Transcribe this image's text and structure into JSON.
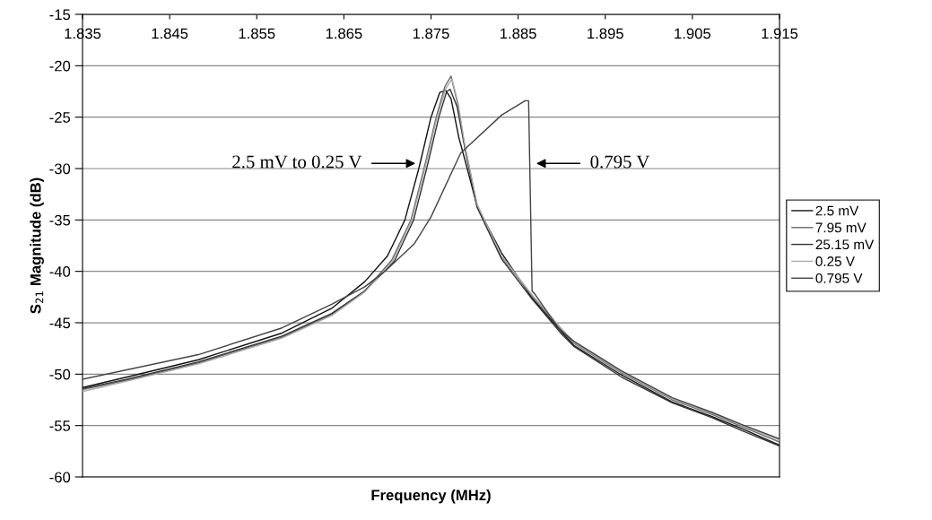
{
  "chart_data": {
    "type": "line",
    "xlabel": "Frequency (MHz)",
    "ylabel": "S$_{21}$ Magnitude (dB)",
    "xlim": [
      1.835,
      1.915
    ],
    "xticks": [
      1.835,
      1.845,
      1.855,
      1.865,
      1.875,
      1.885,
      1.895,
      1.905,
      1.915
    ],
    "ylim": [
      -60,
      -15
    ],
    "yticks": [
      -15,
      -20,
      -25,
      -30,
      -35,
      -40,
      -45,
      -50,
      -55,
      -60
    ],
    "grid": "y",
    "legend": "right",
    "marker": "none",
    "line_style": "solid",
    "series": [
      {
        "name": "2.5 mV",
        "color": "#111111",
        "x": [
          1.835,
          1.84,
          1.8483,
          1.8579,
          1.8636,
          1.8674,
          1.87,
          1.872,
          1.8736,
          1.875,
          1.876,
          1.8767,
          1.8773,
          1.8782,
          1.879,
          1.8803,
          1.8831,
          1.8866,
          1.8901,
          1.8914,
          1.8969,
          1.9027,
          1.9072,
          1.9107,
          1.915
        ],
        "values": [
          -51.3,
          -50.3,
          -48.6,
          -46.0,
          -43.6,
          -41.0,
          -38.5,
          -35.0,
          -30.0,
          -25.0,
          -22.6,
          -22.4,
          -23.2,
          -27.0,
          -29.5,
          -33.7,
          -38.2,
          -42.6,
          -46.0,
          -47.2,
          -50.1,
          -52.7,
          -54.1,
          -55.3,
          -56.9
        ]
      },
      {
        "name": "7.95 mV",
        "color": "#666666",
        "x": [
          1.835,
          1.84,
          1.8483,
          1.8579,
          1.8636,
          1.8674,
          1.8705,
          1.8727,
          1.8742,
          1.8756,
          1.8766,
          1.8773,
          1.878,
          1.8788,
          1.8803,
          1.8831,
          1.8866,
          1.8901,
          1.8914,
          1.8969,
          1.9027,
          1.9072,
          1.9107,
          1.915
        ],
        "values": [
          -51.5,
          -50.6,
          -48.9,
          -46.4,
          -44.2,
          -41.9,
          -38.9,
          -35.0,
          -30.0,
          -25.0,
          -22.0,
          -21.0,
          -23.5,
          -27.5,
          -33.6,
          -38.6,
          -42.4,
          -45.8,
          -47.0,
          -49.9,
          -52.5,
          -53.9,
          -55.1,
          -56.6
        ]
      },
      {
        "name": "25.15 mV",
        "color": "#333333",
        "x": [
          1.835,
          1.84,
          1.8483,
          1.8579,
          1.8636,
          1.8674,
          1.8708,
          1.873,
          1.8745,
          1.8759,
          1.8768,
          1.8772,
          1.878,
          1.879,
          1.8803,
          1.8831,
          1.8866,
          1.8901,
          1.8914,
          1.8969,
          1.9027,
          1.9072,
          1.9107,
          1.915
        ],
        "values": [
          -51.4,
          -50.5,
          -48.8,
          -46.3,
          -44.1,
          -41.9,
          -39.0,
          -35.0,
          -30.0,
          -25.0,
          -22.5,
          -22.3,
          -24.0,
          -28.5,
          -33.8,
          -38.8,
          -42.7,
          -46.2,
          -47.3,
          -50.3,
          -52.8,
          -54.2,
          -55.5,
          -57.0
        ]
      },
      {
        "name": "0.25 V",
        "color": "#aaaaaa",
        "x": [
          1.835,
          1.84,
          1.8483,
          1.8579,
          1.8636,
          1.8674,
          1.8706,
          1.8728,
          1.8743,
          1.8757,
          1.8767,
          1.8774,
          1.8781,
          1.8789,
          1.8803,
          1.8831,
          1.8866,
          1.8901,
          1.8914,
          1.8969,
          1.9027,
          1.9072,
          1.9107,
          1.915
        ],
        "values": [
          -51.7,
          -50.7,
          -49.0,
          -46.5,
          -44.3,
          -42.0,
          -39.0,
          -35.0,
          -30.0,
          -25.0,
          -22.2,
          -21.3,
          -23.6,
          -27.8,
          -33.5,
          -38.5,
          -42.3,
          -45.7,
          -46.9,
          -49.8,
          -52.4,
          -53.8,
          -55.0,
          -56.4
        ]
      },
      {
        "name": "0.795 V",
        "color": "#444444",
        "x": [
          1.835,
          1.8483,
          1.8579,
          1.8636,
          1.8674,
          1.8697,
          1.8731,
          1.875,
          1.8784,
          1.8831,
          1.8858,
          1.8862,
          1.8866,
          1.887,
          1.8897,
          1.8914,
          1.8969,
          1.9027,
          1.9072,
          1.9107,
          1.915
        ],
        "values": [
          -50.5,
          -48.1,
          -45.5,
          -43.2,
          -41.5,
          -40.0,
          -37.3,
          -34.7,
          -28.5,
          -24.8,
          -23.4,
          -23.4,
          -41.9,
          -42.3,
          -45.6,
          -46.8,
          -49.7,
          -52.3,
          -53.7,
          -54.9,
          -56.3
        ]
      }
    ],
    "annotations": [
      {
        "text": "2.5 mV to 0.25 V",
        "x": 1.8735,
        "y": -29.5
      },
      {
        "text": "0.795 V",
        "x": 1.8868,
        "y": -29.5
      }
    ]
  }
}
